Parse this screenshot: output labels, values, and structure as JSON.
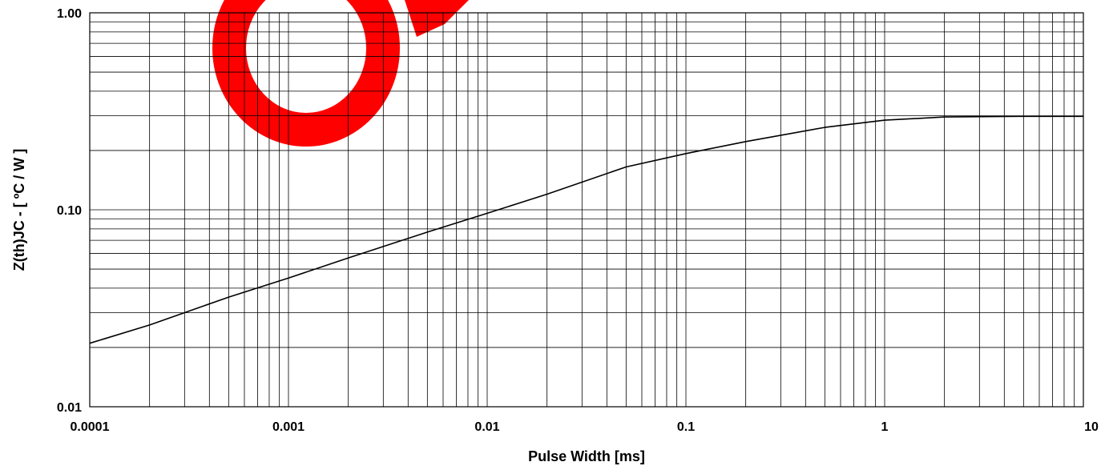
{
  "chart_data": {
    "type": "line",
    "xlabel": "Pulse Width [ms]",
    "ylabel": "Z(th)JC - [ ºC / W ]",
    "x_scale": "log",
    "y_scale": "log",
    "xlim": [
      0.0001,
      10
    ],
    "ylim": [
      0.01,
      1.0
    ],
    "grid": true,
    "x_ticks": [
      "0.0001",
      "0.001",
      "0.01",
      "0.1",
      "1",
      "10"
    ],
    "y_ticks": [
      "0.01",
      "0.10",
      "1.00"
    ],
    "series": [
      {
        "color": "#000000",
        "x": [
          0.0001,
          0.0002,
          0.0005,
          0.001,
          0.002,
          0.005,
          0.01,
          0.02,
          0.05,
          0.1,
          0.2,
          0.5,
          1,
          2,
          5,
          10
        ],
        "y": [
          0.021,
          0.026,
          0.036,
          0.045,
          0.057,
          0.077,
          0.096,
          0.12,
          0.165,
          0.193,
          0.222,
          0.262,
          0.285,
          0.296,
          0.298,
          0.298
        ]
      }
    ]
  },
  "watermark": {
    "color": "#ff0000"
  }
}
